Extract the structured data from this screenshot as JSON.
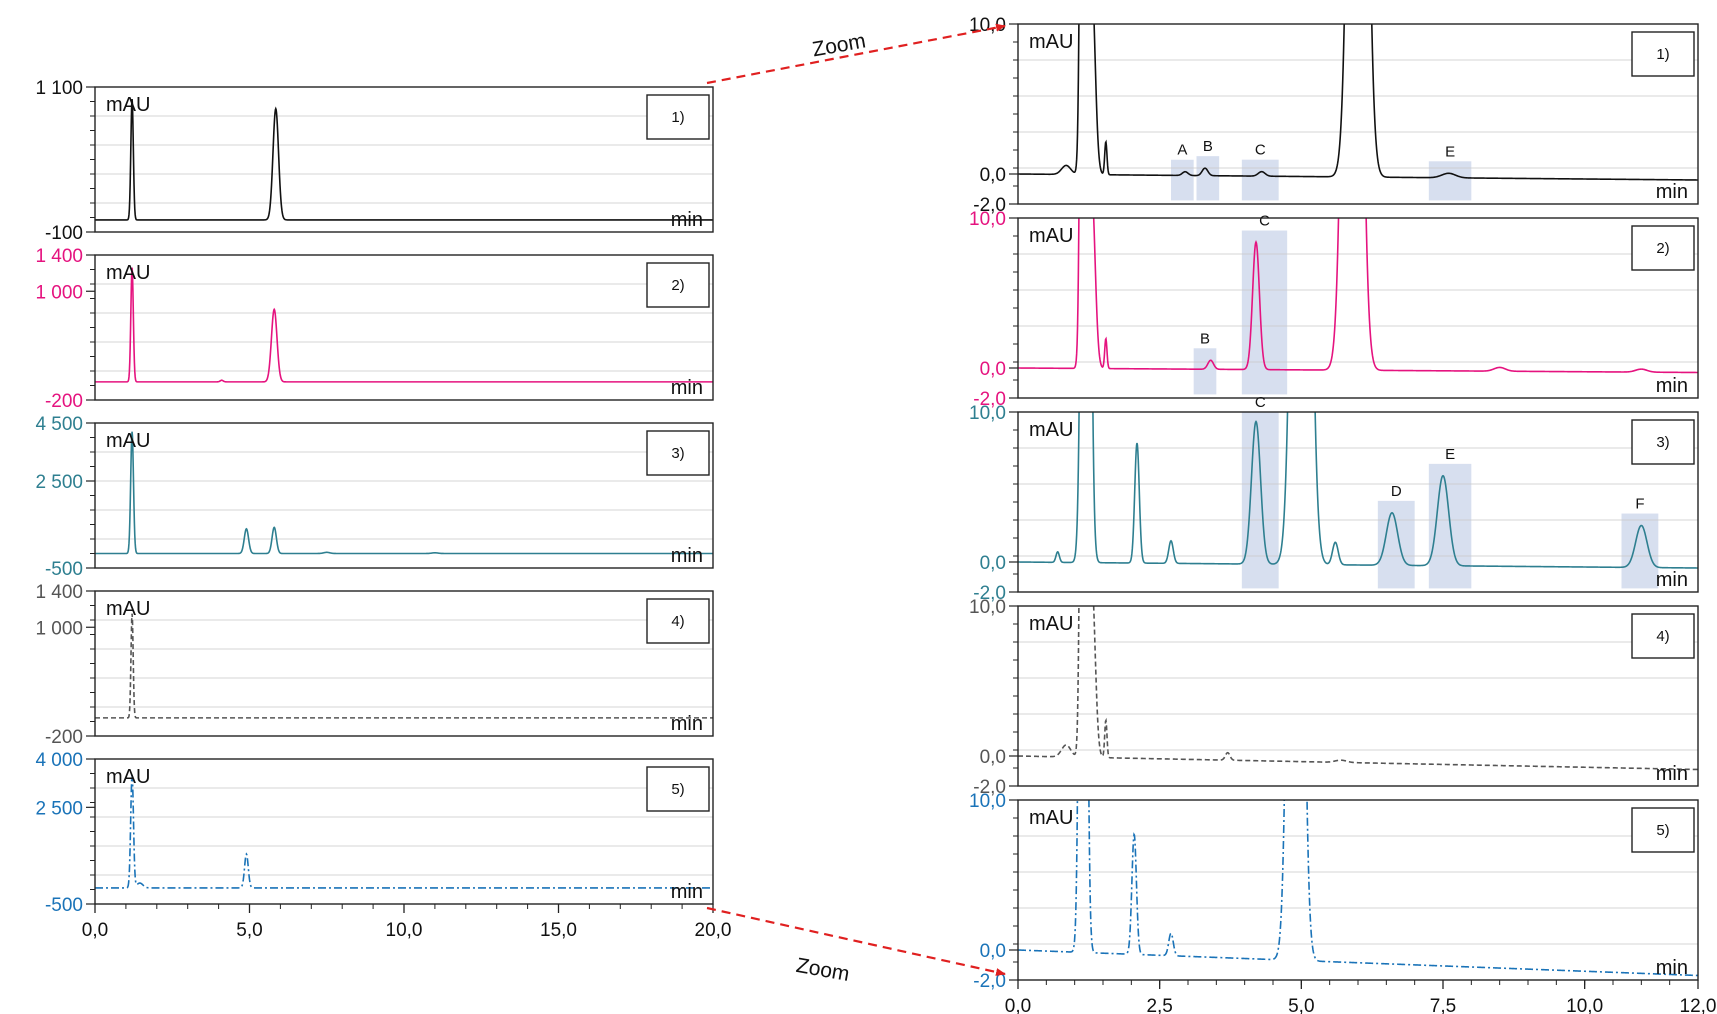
{
  "colors": {
    "trace1": "#111111",
    "trace2": "#e5137f",
    "trace3": "#2e7f90",
    "trace4": "#555555",
    "trace5": "#1a73b8",
    "highlight": "#c9d4ea",
    "arrow": "#e02020",
    "grid": "#c8c8c8"
  },
  "zoom": {
    "top_label": "Zoom",
    "bottom_label": "Zoom"
  },
  "chart_data": [
    {
      "type": "line",
      "x_range": [
        0,
        20
      ],
      "x_ticks": [
        "0,0",
        "5,0",
        "10,0",
        "15,0",
        "20,0"
      ],
      "panels": [
        {
          "label": "1)",
          "ylabel": "mAU",
          "xlabel": "min",
          "color": "trace1",
          "style": "solid",
          "ylim": [
            -100,
            1100
          ],
          "y_ticks": [
            {
              "v": 1100,
              "t": "1 100"
            },
            {
              "v": -100,
              "t": "-100"
            }
          ],
          "baseline": 0,
          "peaks": [
            {
              "t": 1.2,
              "h": 1000,
              "w": 0.04
            },
            {
              "t": 5.85,
              "h": 920,
              "w": 0.09
            }
          ]
        },
        {
          "label": "2)",
          "ylabel": "mAU",
          "xlabel": "min",
          "color": "trace2",
          "style": "solid",
          "ylim": [
            -200,
            1400
          ],
          "y_ticks": [
            {
              "v": 1400,
              "t": "1 400"
            },
            {
              "v": 1000,
              "t": "1 000"
            },
            {
              "v": -200,
              "t": "-200"
            }
          ],
          "baseline": 0,
          "peaks": [
            {
              "t": 1.2,
              "h": 1260,
              "w": 0.04
            },
            {
              "t": 4.1,
              "h": 18,
              "w": 0.05
            },
            {
              "t": 5.8,
              "h": 800,
              "w": 0.09
            }
          ]
        },
        {
          "label": "3)",
          "ylabel": "mAU",
          "xlabel": "min",
          "color": "trace3",
          "style": "solid",
          "ylim": [
            -500,
            4500
          ],
          "y_ticks": [
            {
              "v": 4500,
              "t": "4 500"
            },
            {
              "v": 2500,
              "t": "2 500"
            },
            {
              "v": -500,
              "t": "-500"
            }
          ],
          "baseline": 0,
          "peaks": [
            {
              "t": 1.2,
              "h": 4200,
              "w": 0.045
            },
            {
              "t": 4.9,
              "h": 850,
              "w": 0.07
            },
            {
              "t": 5.8,
              "h": 900,
              "w": 0.07
            },
            {
              "t": 7.5,
              "h": 40,
              "w": 0.1
            },
            {
              "t": 11.0,
              "h": 25,
              "w": 0.1
            }
          ]
        },
        {
          "label": "4)",
          "ylabel": "mAU",
          "xlabel": "min",
          "color": "trace4",
          "style": "dashed",
          "ylim": [
            -200,
            1400
          ],
          "y_ticks": [
            {
              "v": 1400,
              "t": "1 400"
            },
            {
              "v": 1000,
              "t": "1 000"
            },
            {
              "v": -200,
              "t": "-200"
            }
          ],
          "baseline": 0,
          "peaks": [
            {
              "t": 1.2,
              "h": 1150,
              "w": 0.035
            }
          ]
        },
        {
          "label": "5)",
          "ylabel": "mAU",
          "xlabel": "min",
          "color": "trace5",
          "style": "dashdot",
          "ylim": [
            -500,
            4000
          ],
          "y_ticks": [
            {
              "v": 4000,
              "t": "4 000"
            },
            {
              "v": 2500,
              "t": "2 500"
            },
            {
              "v": -500,
              "t": "-500"
            }
          ],
          "baseline": 0,
          "peaks": [
            {
              "t": 1.2,
              "h": 3500,
              "w": 0.045
            },
            {
              "t": 1.45,
              "h": 150,
              "w": 0.1
            },
            {
              "t": 4.9,
              "h": 1050,
              "w": 0.06
            }
          ]
        }
      ]
    },
    {
      "type": "line",
      "x_range": [
        0,
        12
      ],
      "x_ticks": [
        "0,0",
        "2,5",
        "5,0",
        "7,5",
        "10,0",
        "12,0"
      ],
      "x_tick_values": [
        0,
        2.5,
        5,
        7.5,
        10,
        12
      ],
      "panels": [
        {
          "label": "1)",
          "ylabel": "mAU",
          "xlabel": "min",
          "color": "trace1",
          "style": "solid",
          "ylim": [
            -2,
            10
          ],
          "y_ticks": [
            {
              "v": 10,
              "t": "10,0"
            },
            {
              "v": 0,
              "t": "0,0"
            },
            {
              "v": -2,
              "t": "-2,0"
            }
          ],
          "baseline": 0,
          "drift": -0.4,
          "peaks": [
            {
              "t": 0.85,
              "h": 0.6,
              "w": 0.08
            },
            {
              "t": 1.15,
              "h": 60,
              "w": 0.04
            },
            {
              "t": 1.3,
              "h": 13,
              "w": 0.06
            },
            {
              "t": 1.55,
              "h": 2.2,
              "w": 0.02
            },
            {
              "t": 2.95,
              "h": 0.25,
              "w": 0.05
            },
            {
              "t": 3.3,
              "h": 0.5,
              "w": 0.05
            },
            {
              "t": 4.3,
              "h": 0.3,
              "w": 0.06
            },
            {
              "t": 6.0,
              "h": 80,
              "w": 0.12
            },
            {
              "t": 7.6,
              "h": 0.3,
              "w": 0.12
            }
          ],
          "boxes": [
            {
              "x0": 2.7,
              "x1": 3.1,
              "label": "A"
            },
            {
              "x0": 3.15,
              "x1": 3.55,
              "label": "B"
            },
            {
              "x0": 3.95,
              "x1": 4.6,
              "label": "C"
            },
            {
              "x0": 7.25,
              "x1": 8.0,
              "label": "E"
            }
          ]
        },
        {
          "label": "2)",
          "ylabel": "mAU",
          "xlabel": "min",
          "color": "trace2",
          "style": "solid",
          "ylim": [
            -2,
            10
          ],
          "y_ticks": [
            {
              "v": 10,
              "t": "10,0"
            },
            {
              "v": 0,
              "t": "0,0"
            },
            {
              "v": -2,
              "t": "-2,0"
            }
          ],
          "baseline": 0,
          "drift": -0.3,
          "peaks": [
            {
              "t": 1.15,
              "h": 60,
              "w": 0.04
            },
            {
              "t": 1.3,
              "h": 12,
              "w": 0.06
            },
            {
              "t": 1.55,
              "h": 2.0,
              "w": 0.02
            },
            {
              "t": 3.4,
              "h": 0.6,
              "w": 0.05
            },
            {
              "t": 4.2,
              "h": 8.5,
              "w": 0.06
            },
            {
              "t": 5.9,
              "h": 80,
              "w": 0.12
            },
            {
              "t": 8.5,
              "h": 0.25,
              "w": 0.1
            },
            {
              "t": 11.0,
              "h": 0.2,
              "w": 0.1
            }
          ],
          "boxes": [
            {
              "x0": 3.1,
              "x1": 3.5,
              "label": "B"
            },
            {
              "x0": 3.95,
              "x1": 4.75,
              "label": "C"
            }
          ]
        },
        {
          "label": "3)",
          "ylabel": "mAU",
          "xlabel": "min",
          "color": "trace3",
          "style": "solid",
          "ylim": [
            -2,
            10
          ],
          "y_ticks": [
            {
              "v": 10,
              "t": "10,0"
            },
            {
              "v": 0,
              "t": "0,0"
            },
            {
              "v": -2,
              "t": "-2,0"
            }
          ],
          "baseline": 0,
          "drift": -0.4,
          "peaks": [
            {
              "t": 0.7,
              "h": 0.7,
              "w": 0.03
            },
            {
              "t": 1.2,
              "h": 80,
              "w": 0.06
            },
            {
              "t": 2.1,
              "h": 8,
              "w": 0.04
            },
            {
              "t": 2.7,
              "h": 1.5,
              "w": 0.04
            },
            {
              "t": 4.2,
              "h": 9.5,
              "w": 0.08
            },
            {
              "t": 5.0,
              "h": 80,
              "w": 0.12
            },
            {
              "t": 5.6,
              "h": 1.5,
              "w": 0.05
            },
            {
              "t": 6.6,
              "h": 3.5,
              "w": 0.1
            },
            {
              "t": 7.5,
              "h": 6.0,
              "w": 0.1
            },
            {
              "t": 11.0,
              "h": 2.8,
              "w": 0.1
            }
          ],
          "boxes": [
            {
              "x0": 3.95,
              "x1": 4.6,
              "label": "C"
            },
            {
              "x0": 6.35,
              "x1": 7.0,
              "label": "D"
            },
            {
              "x0": 7.25,
              "x1": 8.0,
              "label": "E"
            },
            {
              "x0": 10.65,
              "x1": 11.3,
              "label": "F"
            }
          ]
        },
        {
          "label": "4)",
          "ylabel": "mAU",
          "xlabel": "min",
          "color": "trace4",
          "style": "dashed",
          "ylim": [
            -2,
            10
          ],
          "y_ticks": [
            {
              "v": 10,
              "t": "10,0"
            },
            {
              "v": 0,
              "t": "0,0"
            },
            {
              "v": -2,
              "t": "-2,0"
            }
          ],
          "baseline": 0,
          "drift": -0.9,
          "peaks": [
            {
              "t": 0.85,
              "h": 0.8,
              "w": 0.08
            },
            {
              "t": 1.15,
              "h": 60,
              "w": 0.04
            },
            {
              "t": 1.3,
              "h": 12,
              "w": 0.06
            },
            {
              "t": 1.55,
              "h": 2.5,
              "w": 0.02
            },
            {
              "t": 3.7,
              "h": 0.5,
              "w": 0.04
            },
            {
              "t": 5.7,
              "h": 0.15,
              "w": 0.1
            }
          ]
        },
        {
          "label": "5)",
          "ylabel": "mAU",
          "xlabel": "min",
          "color": "trace5",
          "style": "dashdot",
          "ylim": [
            -2,
            10
          ],
          "y_ticks": [
            {
              "v": 10,
              "t": "10,0"
            },
            {
              "v": 0,
              "t": "0,0"
            },
            {
              "v": -2,
              "t": "-2,0"
            }
          ],
          "baseline": 0,
          "drift": -1.7,
          "peaks": [
            {
              "t": 1.15,
              "h": 80,
              "w": 0.05
            },
            {
              "t": 2.05,
              "h": 8,
              "w": 0.04
            },
            {
              "t": 2.7,
              "h": 1.5,
              "w": 0.04
            },
            {
              "t": 4.9,
              "h": 80,
              "w": 0.1
            }
          ]
        }
      ]
    }
  ]
}
